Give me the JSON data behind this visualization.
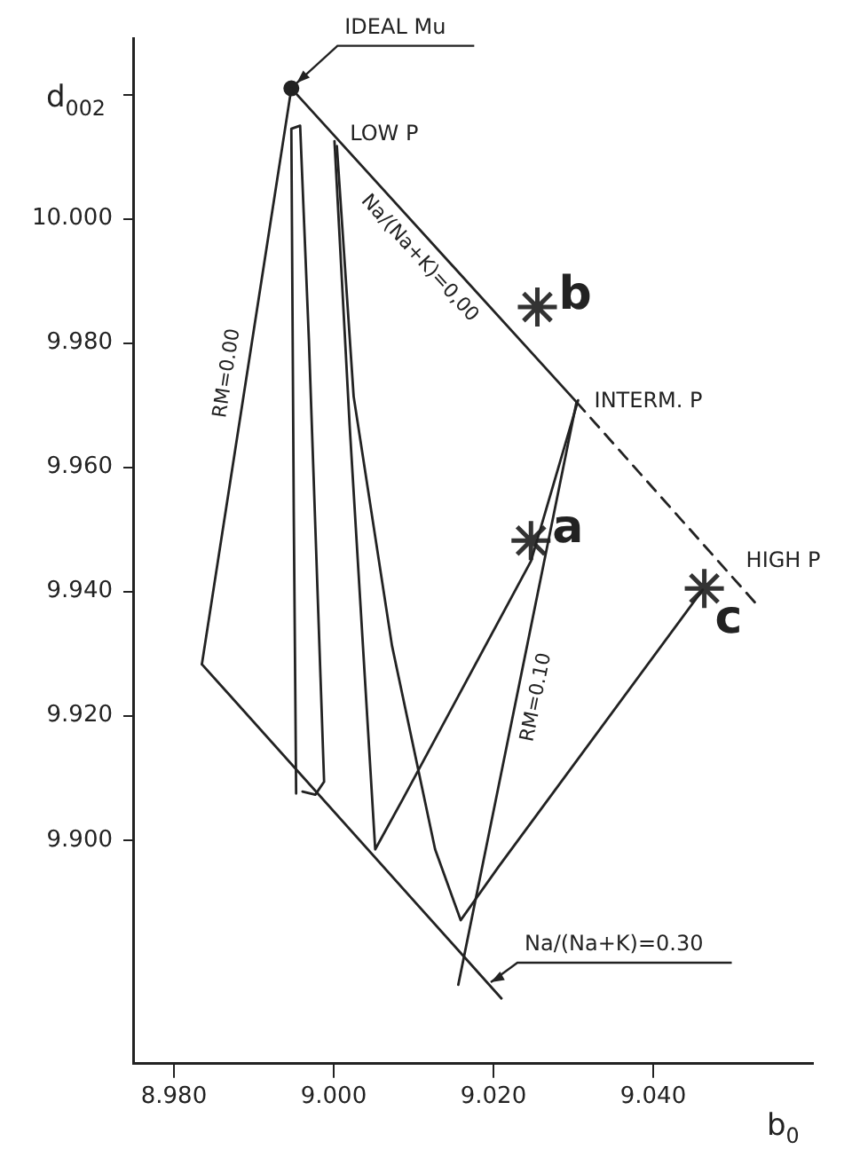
{
  "chart_data": {
    "type": "line",
    "xlabel": "b$_{0}$",
    "ylabel": "d$_{002}$",
    "xlim": [
      8.975,
      9.06
    ],
    "ylim": [
      9.864,
      10.029
    ],
    "xticks": [
      {
        "value": 8.98,
        "label": "8.980"
      },
      {
        "value": 9.0,
        "label": "9.000"
      },
      {
        "value": 9.02,
        "label": "9.020"
      },
      {
        "value": 9.04,
        "label": "9.040"
      }
    ],
    "yticks": [
      {
        "value": 9.9,
        "label": "9.900"
      },
      {
        "value": 9.92,
        "label": "9.920"
      },
      {
        "value": 9.94,
        "label": "9.940"
      },
      {
        "value": 9.96,
        "label": "9.960"
      },
      {
        "value": 9.98,
        "label": "9.980"
      },
      {
        "value": 10.0,
        "label": "10.000"
      },
      {
        "value": 10.02,
        "label": null
      }
    ],
    "grid": false,
    "legend": false,
    "marker": "none",
    "line_style": "solid",
    "series": [
      {
        "name": "RM=0.00",
        "color": "#222222",
        "x": [
          8.9835,
          8.9947
        ],
        "values": [
          9.9283,
          10.021
        ]
      },
      {
        "name": "Na/(Na+K)=0,00",
        "color": "#222222",
        "x": [
          8.9947,
          9.0304
        ],
        "values": [
          10.021,
          9.9705
        ]
      },
      {
        "color": "#222222",
        "line_style": "dashed",
        "x": [
          9.0304,
          9.0534
        ],
        "values": [
          9.9705,
          9.9373
        ]
      },
      {
        "color": "#222222",
        "x": [
          8.9835,
          9.021
        ],
        "values": [
          9.9283,
          9.8745
        ]
      },
      {
        "name": "RM=0.10",
        "color": "#222222",
        "x": [
          9.0156,
          9.0304
        ],
        "values": [
          9.8767,
          9.9705
        ]
      },
      {
        "color": "#222222",
        "x": [
          8.9953,
          8.995,
          8.9947,
          8.9958,
          8.9969,
          8.9988,
          8.9977,
          8.9961
        ],
        "values": [
          9.9075,
          9.9531,
          10.0145,
          10.015,
          9.9804,
          9.9094,
          9.9073,
          9.9078
        ]
      },
      {
        "color": "#222222",
        "x": [
          9.0001,
          9.002,
          9.0052,
          9.0087,
          9.0247,
          9.0306
        ],
        "values": [
          10.0125,
          9.9667,
          9.8985,
          9.9067,
          9.9449,
          9.9708
        ]
      },
      {
        "color": "#222222",
        "x": [
          9.0004,
          9.0025,
          9.0073,
          9.0127,
          9.0159,
          9.0207,
          9.0462
        ],
        "values": [
          10.0117,
          9.9714,
          9.9313,
          9.8985,
          9.8871,
          9.8958,
          9.9403
        ]
      },
      {
        "type": "scatter",
        "marker": "circle",
        "color": "#222222",
        "x": [
          8.9947
        ],
        "values": [
          10.021
        ]
      },
      {
        "type": "scatter",
        "marker": "cross",
        "color": "#333333",
        "x": [
          9.0255,
          9.0247,
          9.0464
        ],
        "values": [
          9.9858,
          9.9482,
          9.9405
        ]
      }
    ],
    "annotations": [
      {
        "text": "IDEAL Mu",
        "x": 8.9947,
        "y": 10.021
      },
      {
        "text": "LOW P",
        "x": 8.9998,
        "y": 10.0136
      },
      {
        "text": "INTERM. P",
        "x": 9.0304,
        "y": 9.9705
      },
      {
        "text": "HIGH P",
        "x": 9.0494,
        "y": 9.9449
      },
      {
        "text": "b",
        "x": 9.0255,
        "y": 9.9858
      },
      {
        "text": "a",
        "x": 9.0247,
        "y": 9.9482
      },
      {
        "text": "c",
        "x": 9.0464,
        "y": 9.9405
      },
      {
        "text": "Na/(Na+K)=0.30",
        "x": 9.019,
        "y": 9.8774
      }
    ]
  }
}
